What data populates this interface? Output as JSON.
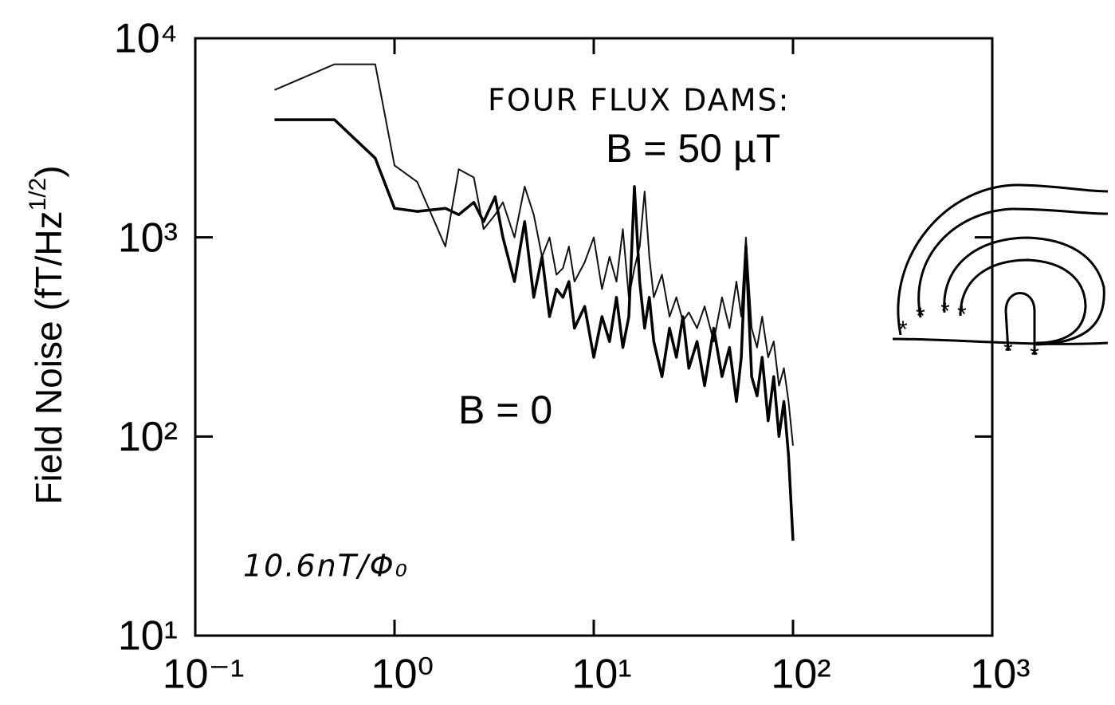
{
  "chart_data": {
    "type": "line",
    "ylabel_parts": [
      "Field Noise (fT/Hz",
      "1/2",
      ")"
    ],
    "annotations": [
      "FOUR FLUX DAMS:",
      "10.6nT/Φ₀"
    ],
    "log_x": true,
    "log_y": true,
    "xlim": [
      0.1,
      1000
    ],
    "ylim": [
      10,
      10000
    ],
    "xticks": [
      {
        "value": 0.1,
        "label": "10⁻¹"
      },
      {
        "value": 1,
        "label": "10⁰"
      },
      {
        "value": 10,
        "label": "10¹"
      },
      {
        "value": 100,
        "label": "10²"
      },
      {
        "value": 1000,
        "label": "10³"
      }
    ],
    "yticks": [
      {
        "value": 10,
        "label": "10¹"
      },
      {
        "value": 100,
        "label": "10²"
      },
      {
        "value": 1000,
        "label": "10³"
      },
      {
        "value": 10000,
        "label": "10⁴"
      }
    ],
    "x": [
      0.25,
      0.5,
      0.8,
      1.0,
      1.3,
      1.8,
      2.1,
      2.5,
      2.8,
      3.2,
      3.5,
      4.0,
      4.5,
      5,
      5.5,
      6,
      6.5,
      7,
      7.5,
      8,
      9,
      10,
      11,
      12,
      13,
      14,
      15,
      16,
      17,
      18,
      19,
      20,
      22,
      24,
      26,
      28,
      30,
      33,
      36,
      40,
      44,
      48,
      52,
      55,
      58,
      62,
      66,
      70,
      75,
      80,
      85,
      90,
      95,
      100
    ],
    "series": [
      {
        "name": "B = 50 µT",
        "color": "#111111",
        "line_width": 2,
        "values": [
          5500,
          7400,
          7400,
          2300,
          1900,
          900,
          2200,
          2000,
          1100,
          1300,
          1500,
          1000,
          1800,
          1300,
          800,
          1000,
          650,
          700,
          900,
          600,
          750,
          1000,
          550,
          800,
          600,
          1100,
          500,
          700,
          900,
          1700,
          800,
          500,
          650,
          400,
          500,
          380,
          420,
          350,
          450,
          300,
          500,
          350,
          600,
          400,
          1000,
          350,
          280,
          400,
          250,
          300,
          180,
          220,
          150,
          90
        ]
      },
      {
        "name": "B = 0",
        "color": "#000000",
        "line_width": 3.5,
        "values": [
          3900,
          3900,
          2500,
          1400,
          1350,
          1400,
          1300,
          1500,
          1200,
          1600,
          1000,
          600,
          1200,
          500,
          800,
          400,
          550,
          500,
          600,
          350,
          450,
          250,
          400,
          300,
          500,
          280,
          400,
          1800,
          600,
          350,
          500,
          300,
          200,
          350,
          250,
          400,
          220,
          300,
          180,
          350,
          200,
          280,
          150,
          250,
          900,
          200,
          160,
          250,
          120,
          200,
          100,
          150,
          80,
          30
        ]
      }
    ]
  }
}
